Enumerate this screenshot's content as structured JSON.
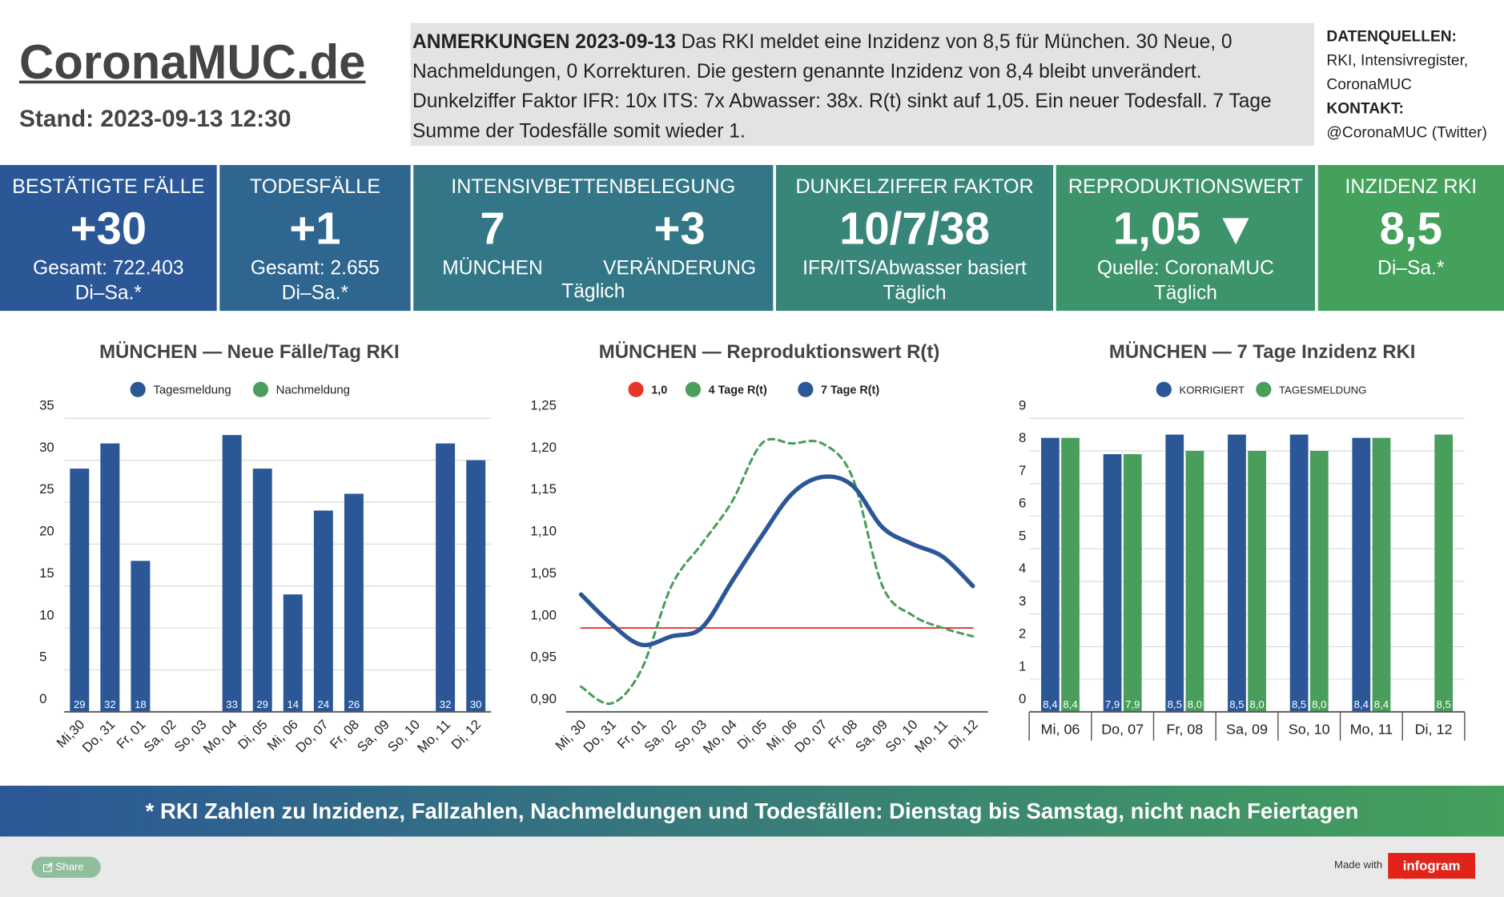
{
  "header": {
    "title": "CoronaMUC.de",
    "stand": "Stand: 2023-09-13 12:30"
  },
  "notes": {
    "heading": "ANMERKUNGEN 2023-09-13",
    "text": "Das RKI meldet eine Inzidenz von 8,5 für München. 30 Neue, 0 Nachmeldungen, 0 Korrekturen. Die gestern genannte Inzidenz von 8,4 bleibt unverändert. Dunkelziffer Faktor IFR: 10x  ITS: 7x Abwasser: 38x. R(t) sinkt auf 1,05. Ein neuer Todesfall. 7 Tage Summe der Todesfälle somit wieder 1."
  },
  "sources": {
    "heading": "DATENQUELLEN:",
    "lines": [
      "RKI, Intensivregister,",
      "CoronaMUC"
    ],
    "contact_heading": "KONTAKT:",
    "contact": "@CoronaMUC (Twitter)"
  },
  "tiles": [
    {
      "title": "BESTÄTIGTE FÄLLE",
      "main": "+30",
      "lines": [
        "Gesamt: 722.403",
        "Di–Sa.*"
      ]
    },
    {
      "title": "TODESFÄLLE",
      "main": "+1",
      "lines": [
        "Gesamt: 2.655",
        "Di–Sa.*"
      ]
    },
    {
      "title": "INTENSIVBETTENBELEGUNG",
      "values": [
        "7",
        "+3"
      ],
      "labels": [
        "MÜNCHEN",
        "VERÄNDERUNG"
      ],
      "lines": [
        "Täglich"
      ]
    },
    {
      "title": "DUNKELZIFFER FAKTOR",
      "main": "10/7/38",
      "lines": [
        "IFR/ITS/Abwasser basiert",
        "Täglich"
      ]
    },
    {
      "title": "REPRODUKTIONSWERT",
      "main": "1,05 ▼",
      "lines": [
        "Quelle: CoronaMUC",
        "Täglich"
      ]
    },
    {
      "title": "INZIDENZ RKI",
      "main": "8,5",
      "lines": [
        "Di–Sa.*"
      ]
    }
  ],
  "footer_note": "* RKI Zahlen zu Inzidenz, Fallzahlen, Nachmeldungen und Todesfällen: Dienstag bis Samstag, nicht nach Feiertagen",
  "share": "Share",
  "made_with": "Made with",
  "brand": "infogram",
  "chart_data": [
    {
      "type": "bar",
      "stacked": true,
      "title": "MÜNCHEN — Neue Fälle/Tag RKI",
      "categories": [
        "Mi,30",
        "Do, 31",
        "Fr, 01",
        "Sa, 02",
        "So, 03",
        "Mo, 04",
        "Di, 05",
        "Mi, 06",
        "Do, 07",
        "Fr, 08",
        "Sa, 09",
        "So, 10",
        "Mo, 11",
        "Di, 12"
      ],
      "series": [
        {
          "name": "Tagesmeldung",
          "color": "#2b5797",
          "values": [
            29,
            32,
            18,
            null,
            null,
            33,
            29,
            14,
            24,
            26,
            null,
            null,
            32,
            30
          ]
        },
        {
          "name": "Nachmeldung",
          "color": "#4a9e5c",
          "values": [
            0,
            0,
            0,
            null,
            null,
            0,
            0,
            0,
            0,
            0,
            null,
            null,
            0,
            0
          ]
        }
      ],
      "ylim": [
        0,
        35
      ],
      "yticks": [
        0,
        5,
        10,
        15,
        20,
        25,
        30,
        35
      ],
      "grid": true
    },
    {
      "type": "line",
      "title": "MÜNCHEN — Reproduktionswert R(t)",
      "categories": [
        "Mi, 30",
        "Do, 31",
        "Fr, 01",
        "Sa, 02",
        "So, 03",
        "Mo, 04",
        "Di, 05",
        "Mi, 06",
        "Do, 07",
        "Fr, 08",
        "Sa, 09",
        "So, 10",
        "Mo, 11",
        "Di, 12"
      ],
      "series": [
        {
          "name": "1,0",
          "color": "#e8352a",
          "values": [
            1.0,
            1.0,
            1.0,
            1.0,
            1.0,
            1.0,
            1.0,
            1.0,
            1.0,
            1.0,
            1.0,
            1.0,
            1.0,
            1.0
          ]
        },
        {
          "name": "4 Tage R(t)",
          "color": "#4a9e5c",
          "dashed": true,
          "values": [
            0.93,
            0.91,
            0.95,
            1.05,
            1.1,
            1.15,
            1.22,
            1.22,
            1.22,
            1.18,
            1.05,
            1.015,
            1.0,
            0.99
          ]
        },
        {
          "name": "7 Tage R(t)",
          "color": "#2b5797",
          "values": [
            1.04,
            1.005,
            0.98,
            0.99,
            1.0,
            1.055,
            1.11,
            1.16,
            1.18,
            1.17,
            1.12,
            1.1,
            1.085,
            1.05
          ]
        }
      ],
      "ylim": [
        0.9,
        1.25
      ],
      "yticks": [
        {
          "value": 0.9,
          "label": "0,90"
        },
        {
          "value": 0.95,
          "label": "0,95"
        },
        {
          "value": 1.0,
          "label": "1,00"
        },
        {
          "value": 1.05,
          "label": "1,05"
        },
        {
          "value": 1.1,
          "label": "1,10"
        },
        {
          "value": 1.15,
          "label": "1,15"
        },
        {
          "value": 1.2,
          "label": "1,20"
        },
        {
          "value": 1.25,
          "label": "1,25"
        }
      ],
      "grid": false
    },
    {
      "type": "bar",
      "stacked": false,
      "title": "MÜNCHEN — 7 Tage Inzidenz RKI",
      "categories": [
        "Mi, 06",
        "Do, 07",
        "Fr, 08",
        "Sa, 09",
        "So, 10",
        "Mo, 11",
        "Di, 12"
      ],
      "series": [
        {
          "name": "KORRIGIERT",
          "color": "#2b5797",
          "values": [
            8.4,
            7.9,
            8.5,
            8.5,
            8.5,
            8.4,
            null
          ],
          "value_labels": [
            "8,4",
            "7,9",
            "8,5",
            "8,5",
            "8,5",
            "8,4",
            null
          ]
        },
        {
          "name": "TAGESMELDUNG",
          "color": "#4a9e5c",
          "values": [
            8.4,
            7.9,
            8.0,
            8.0,
            8.0,
            8.4,
            8.5
          ],
          "value_labels": [
            "8,4",
            "7,9",
            "8,0",
            "8,0",
            "8,0",
            "8,4",
            "8,5"
          ]
        }
      ],
      "ylim": [
        0,
        9
      ],
      "yticks": [
        0,
        1,
        2,
        3,
        4,
        5,
        6,
        7,
        8,
        9
      ],
      "grid": true
    }
  ]
}
